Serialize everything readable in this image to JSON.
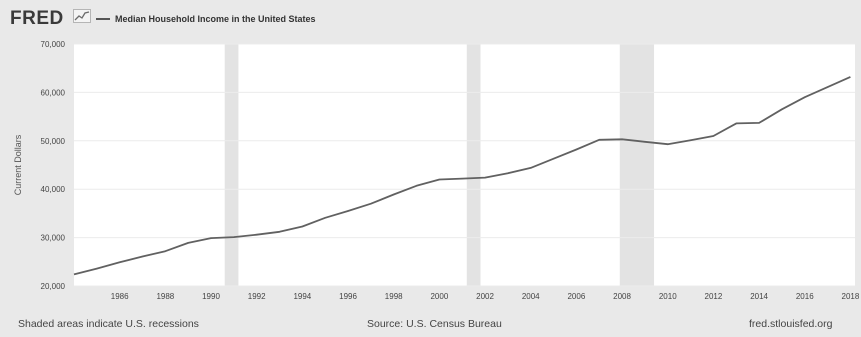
{
  "header": {
    "brand": "FRED",
    "brand_mark_icon": "fred-sparkline-logo",
    "legend_label": "Median Household Income in the United States"
  },
  "footer": {
    "recession_note": "Shaded areas indicate U.S. recessions",
    "source": "Source: U.S. Census Bureau",
    "site": "fred.stlouisfed.org"
  },
  "colors": {
    "background": "#e9e9e9",
    "plot_area": "#ffffff",
    "line": "#616161",
    "recession": "#e3e3e3"
  },
  "chart_data": {
    "type": "line",
    "title": "",
    "xlabel": "",
    "ylabel": "Current Dollars",
    "xlim": [
      1984,
      2018.2
    ],
    "ylim": [
      20000,
      70000
    ],
    "yticks": [
      20000,
      30000,
      40000,
      50000,
      60000,
      70000
    ],
    "ytick_labels": [
      "20,000",
      "30,000",
      "40,000",
      "50,000",
      "60,000",
      "70,000"
    ],
    "xticks": [
      1986,
      1988,
      1990,
      1992,
      1994,
      1996,
      1998,
      2000,
      2002,
      2004,
      2006,
      2008,
      2010,
      2012,
      2014,
      2016,
      2018
    ],
    "xtick_labels": [
      "1986",
      "1988",
      "1990",
      "1992",
      "1994",
      "1996",
      "1998",
      "2000",
      "2002",
      "2004",
      "2006",
      "2008",
      "2010",
      "2012",
      "2014",
      "2016",
      "2018"
    ],
    "grid": true,
    "legend": "top-left",
    "recessions": [
      [
        1990.6,
        1991.2
      ],
      [
        2001.2,
        2001.8
      ],
      [
        2007.9,
        2009.4
      ]
    ],
    "series": [
      {
        "name": "Median Household Income in the United States",
        "x": [
          1984,
          1985,
          1986,
          1987,
          1988,
          1989,
          1990,
          1991,
          1992,
          1993,
          1994,
          1995,
          1996,
          1997,
          1998,
          1999,
          2000,
          2001,
          2002,
          2003,
          2004,
          2005,
          2006,
          2007,
          2008,
          2009,
          2010,
          2011,
          2012,
          2013,
          2014,
          2015,
          2016,
          2017,
          2018
        ],
        "values": [
          22400,
          23600,
          24900,
          26100,
          27200,
          28900,
          29900,
          30100,
          30600,
          31200,
          32300,
          34100,
          35500,
          37000,
          38900,
          40700,
          42000,
          42200,
          42400,
          43300,
          44400,
          46300,
          48200,
          50200,
          50300,
          49800,
          49300,
          50100,
          51000,
          53600,
          53700,
          56500,
          59000,
          61100,
          63200
        ]
      }
    ]
  }
}
